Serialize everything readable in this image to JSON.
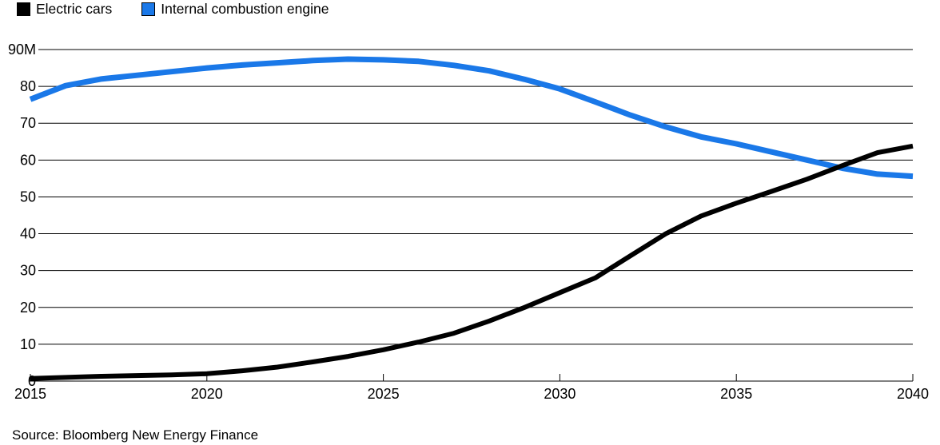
{
  "legend": {
    "items": [
      {
        "label": "Electric cars",
        "color": "#000000"
      },
      {
        "label": "Internal combustion engine",
        "color": "#1a78e8"
      }
    ]
  },
  "source": "Source: Bloomberg New Energy Finance",
  "chart_data": {
    "type": "line",
    "title": "",
    "xlabel": "",
    "ylabel": "",
    "x": [
      2015,
      2016,
      2017,
      2018,
      2019,
      2020,
      2021,
      2022,
      2023,
      2024,
      2025,
      2026,
      2027,
      2028,
      2029,
      2030,
      2031,
      2032,
      2033,
      2034,
      2035,
      2036,
      2037,
      2038,
      2039,
      2040
    ],
    "series": [
      {
        "name": "Electric cars",
        "color": "#000000",
        "values": [
          0.7,
          1.0,
          1.3,
          1.5,
          1.7,
          2.0,
          2.8,
          3.8,
          5.2,
          6.7,
          8.5,
          10.6,
          13.0,
          16.3,
          20.0,
          24.0,
          28.0,
          34.0,
          40.0,
          44.8,
          48.3,
          51.5,
          54.8,
          58.5,
          62.0,
          63.8
        ]
      },
      {
        "name": "Internal combustion engine",
        "color": "#1a78e8",
        "values": [
          76.5,
          80.2,
          82.0,
          83.0,
          84.0,
          85.0,
          85.8,
          86.4,
          87.0,
          87.4,
          87.2,
          86.8,
          85.7,
          84.2,
          81.9,
          79.3,
          75.8,
          72.2,
          69.0,
          66.3,
          64.4,
          62.2,
          60.0,
          57.8,
          56.2,
          55.6
        ]
      }
    ],
    "ylim": [
      0,
      90
    ],
    "ytick_labels": [
      "0",
      "10",
      "20",
      "30",
      "40",
      "50",
      "60",
      "70",
      "80",
      "90M"
    ],
    "xticks": [
      2015,
      2020,
      2025,
      2030,
      2035,
      2040
    ],
    "grid": "horizontal",
    "legend_position": "top-left",
    "units": "millions of vehicles"
  }
}
